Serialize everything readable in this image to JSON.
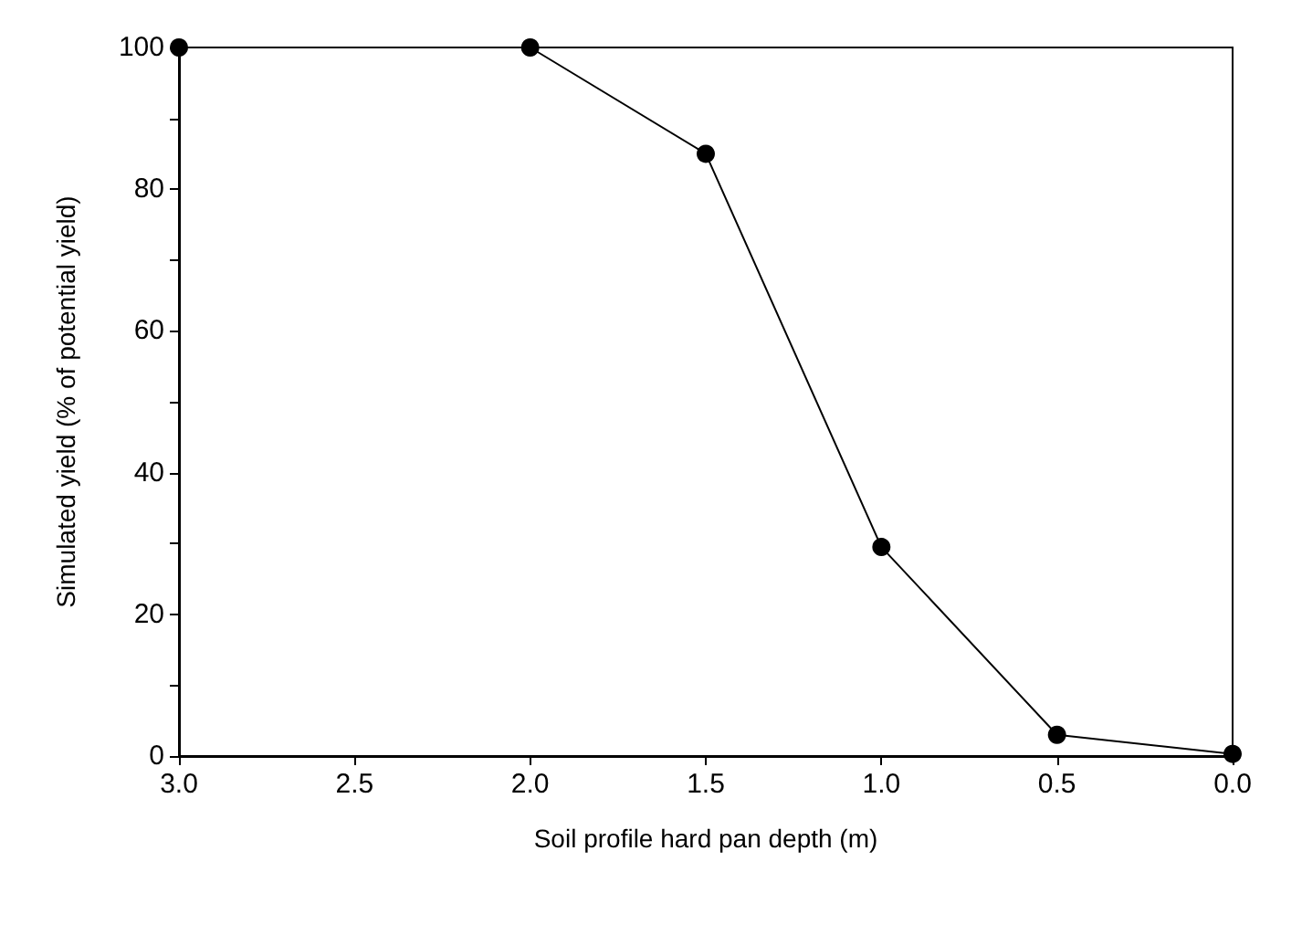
{
  "chart_data": {
    "type": "line",
    "xlabel": "Soil profile hard pan depth (m)",
    "ylabel": "Simulated yield (% of potential yield)",
    "x": [
      3,
      2,
      1.5,
      1,
      0.5,
      0
    ],
    "series": [
      {
        "color": "#000000",
        "values": [
          100,
          100,
          85,
          29.5,
          3,
          0.3
        ]
      }
    ],
    "xlim": [
      3,
      0
    ],
    "xticks": [
      {
        "value": 3,
        "label": "3.0"
      },
      {
        "value": 2.5,
        "label": "2.5"
      },
      {
        "value": 2,
        "label": "2.0"
      },
      {
        "value": 1.5,
        "label": "1.5"
      },
      {
        "value": 1,
        "label": "1.0"
      },
      {
        "value": 0.5,
        "label": "0.5"
      },
      {
        "value": 0,
        "label": "0.0"
      }
    ],
    "ylim": [
      0,
      100
    ],
    "yticks": [
      0,
      {
        "value": 10,
        "label": null
      },
      20,
      {
        "value": 30,
        "label": null
      },
      40,
      {
        "value": 50,
        "label": null
      },
      60,
      {
        "value": 70,
        "label": null
      },
      80,
      {
        "value": 90,
        "label": null
      },
      100
    ],
    "grid": false,
    "marker": "circle",
    "line_style": "solid"
  }
}
